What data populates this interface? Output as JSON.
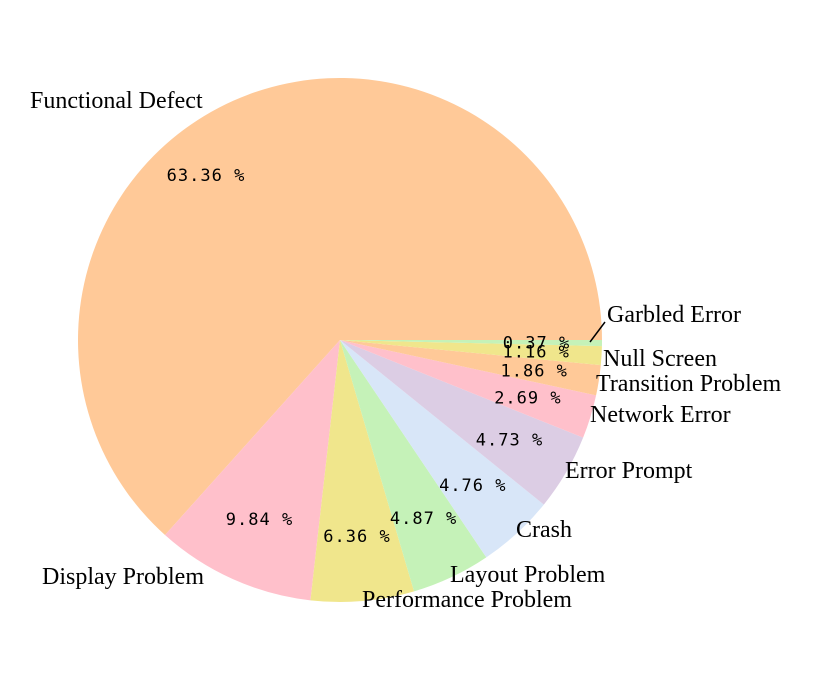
{
  "chart_data": {
    "type": "pie",
    "title": "",
    "start_angle_deg": 0,
    "direction": "counterclockwise",
    "slices": [
      {
        "label": "Functional Defect",
        "value": 63.36,
        "pct_text": "63.36 %",
        "color": "#FFC998"
      },
      {
        "label": "Display Problem",
        "value": 9.84,
        "pct_text": "9.84 %",
        "color": "#FFC0CB"
      },
      {
        "label": "Performance Problem",
        "value": 6.36,
        "pct_text": "6.36 %",
        "color": "#F0E68C"
      },
      {
        "label": "Layout Problem",
        "value": 4.87,
        "pct_text": "4.87 %",
        "color": "#C5F2B8"
      },
      {
        "label": "Crash",
        "value": 4.76,
        "pct_text": "4.76 %",
        "color": "#D8E6F8"
      },
      {
        "label": "Error Prompt",
        "value": 4.73,
        "pct_text": "4.73 %",
        "color": "#DCCDE4"
      },
      {
        "label": "Network Error",
        "value": 2.69,
        "pct_text": "2.69 %",
        "color": "#FFC0CB"
      },
      {
        "label": "Transition Problem",
        "value": 1.86,
        "pct_text": "1.86 %",
        "color": "#FFC998"
      },
      {
        "label": "Null Screen",
        "value": 1.16,
        "pct_text": "1.16 %",
        "color": "#F0E68C"
      },
      {
        "label": "Garbled Error",
        "value": 0.37,
        "pct_text": "0.37 %",
        "color": "#C5F2B8"
      }
    ]
  }
}
